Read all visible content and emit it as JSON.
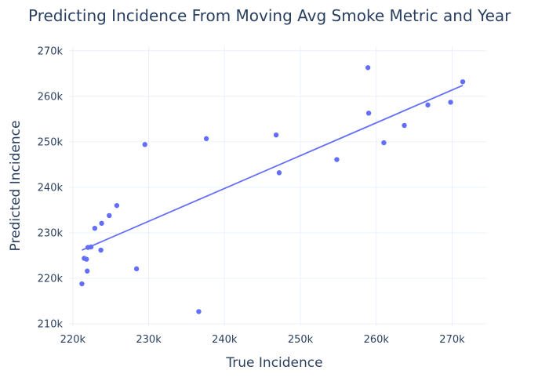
{
  "chart_data": {
    "type": "scatter",
    "title": "Predicting Incidence From Moving Avg Smoke Metric and Year",
    "xlabel": "True Incidence",
    "ylabel": "Predicted Incidence",
    "xlim": [
      219500,
      274500
    ],
    "ylim": [
      209500,
      271000
    ],
    "x_ticks": [
      220000,
      230000,
      240000,
      250000,
      260000,
      270000
    ],
    "x_tick_labels": [
      "220k",
      "230k",
      "240k",
      "250k",
      "260k",
      "270k"
    ],
    "y_ticks": [
      210000,
      220000,
      230000,
      240000,
      250000,
      260000,
      270000
    ],
    "y_tick_labels": [
      "210k",
      "220k",
      "230k",
      "240k",
      "250k",
      "260k",
      "270k"
    ],
    "grid": true,
    "colors": {
      "points": "#636efa",
      "trendline": "#636efa",
      "grid": "#ebf0f8",
      "text": "#2a3f5f"
    },
    "series": [
      {
        "mode": "markers",
        "x": [
          221200,
          221500,
          221800,
          221900,
          222000,
          222400,
          222900,
          223700,
          223800,
          224800,
          225800,
          228400,
          229500,
          236600,
          237600,
          246800,
          247200,
          254800,
          258900,
          259000,
          261000,
          263700,
          266800,
          269800,
          271400
        ],
        "y": [
          218800,
          224400,
          224200,
          221600,
          226800,
          226900,
          231000,
          226200,
          232100,
          233800,
          236000,
          222100,
          249400,
          212700,
          250700,
          251500,
          243200,
          246100,
          266300,
          256300,
          249800,
          253600,
          258100,
          258700,
          263200
        ]
      },
      {
        "mode": "lines",
        "x": [
          221200,
          271400
        ],
        "y": [
          226200,
          262400
        ]
      }
    ]
  }
}
